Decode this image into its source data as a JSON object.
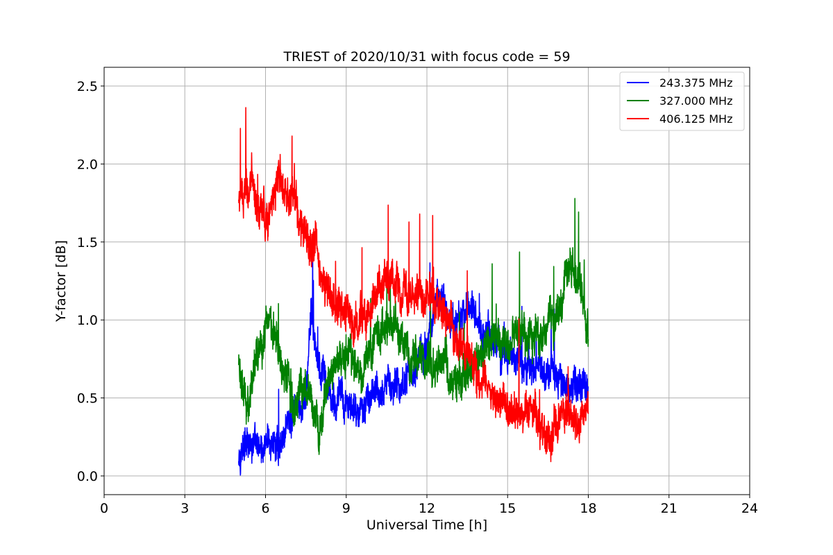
{
  "chart_data": {
    "type": "line",
    "title": "TRIEST of 2020/10/31 with focus code = 59",
    "xlabel": "Universal Time [h]",
    "ylabel": "Y-factor [dB]",
    "xlim": [
      0,
      24
    ],
    "ylim": [
      -0.12,
      2.62
    ],
    "xticks": [
      0,
      3,
      6,
      9,
      12,
      15,
      18,
      21,
      24
    ],
    "yticks": [
      0.0,
      0.5,
      1.0,
      1.5,
      2.0,
      2.5
    ],
    "ytick_labels": [
      "0.0",
      "0.5",
      "1.0",
      "1.5",
      "2.0",
      "2.5"
    ],
    "grid": true,
    "legend_position": "top-right",
    "series": [
      {
        "name": "243.375 MHz",
        "color": "#0000ff",
        "noise": 0.13,
        "x": [
          5.0,
          5.5,
          6.0,
          6.5,
          7.0,
          7.5,
          7.7,
          8.0,
          8.5,
          9.0,
          9.5,
          10.0,
          10.5,
          11.0,
          11.5,
          12.0,
          12.4,
          12.8,
          13.2,
          13.6,
          14.0,
          14.5,
          15.0,
          15.5,
          16.0,
          16.5,
          17.0,
          17.5,
          18.0
        ],
        "y": [
          0.18,
          0.2,
          0.15,
          0.2,
          0.4,
          0.5,
          1.0,
          0.65,
          0.5,
          0.45,
          0.42,
          0.5,
          0.55,
          0.6,
          0.7,
          0.8,
          1.2,
          1.05,
          1.0,
          1.1,
          0.95,
          0.85,
          0.8,
          0.7,
          0.7,
          0.65,
          0.6,
          0.55,
          0.55
        ]
      },
      {
        "name": "327.000 MHz",
        "color": "#008000",
        "noise": 0.15,
        "x": [
          5.0,
          5.3,
          5.6,
          6.0,
          6.3,
          6.6,
          7.0,
          7.5,
          8.0,
          8.5,
          9.0,
          9.5,
          10.0,
          10.5,
          11.0,
          11.5,
          12.0,
          12.5,
          13.0,
          13.5,
          14.0,
          14.5,
          15.0,
          15.5,
          16.0,
          16.5,
          17.0,
          17.3,
          17.6,
          18.0
        ],
        "y": [
          0.75,
          0.4,
          0.7,
          0.95,
          1.0,
          0.7,
          0.45,
          0.55,
          0.3,
          0.7,
          0.8,
          0.6,
          0.8,
          0.95,
          0.9,
          0.8,
          0.75,
          0.75,
          0.65,
          0.65,
          0.75,
          0.85,
          0.85,
          0.9,
          0.9,
          0.95,
          1.05,
          1.4,
          1.2,
          0.95
        ]
      },
      {
        "name": "406.125 MHz",
        "color": "#ff0000",
        "noise": 0.15,
        "x": [
          5.0,
          5.5,
          6.0,
          6.5,
          7.0,
          7.5,
          8.0,
          8.5,
          9.0,
          9.5,
          10.0,
          10.5,
          11.0,
          11.5,
          12.0,
          12.5,
          13.0,
          13.5,
          14.0,
          14.5,
          15.0,
          15.5,
          16.0,
          16.5,
          17.0,
          17.5,
          18.0
        ],
        "y": [
          1.75,
          1.85,
          1.65,
          1.9,
          1.7,
          1.55,
          1.4,
          1.15,
          1.05,
          1.0,
          1.15,
          1.25,
          1.2,
          1.2,
          1.15,
          1.1,
          0.95,
          0.8,
          0.6,
          0.45,
          0.4,
          0.4,
          0.4,
          0.25,
          0.45,
          0.35,
          0.4
        ]
      }
    ]
  }
}
